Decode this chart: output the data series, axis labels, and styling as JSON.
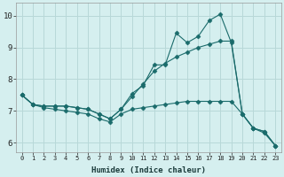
{
  "xlabel": "Humidex (Indice chaleur)",
  "background_color": "#d5efef",
  "grid_color": "#b8d8d8",
  "line_color": "#1a6b6b",
  "xlim": [
    -0.5,
    23.5
  ],
  "ylim": [
    5.7,
    10.4
  ],
  "yticks": [
    6,
    7,
    8,
    9,
    10
  ],
  "xticks": [
    0,
    1,
    2,
    3,
    4,
    5,
    6,
    7,
    8,
    9,
    10,
    11,
    12,
    13,
    14,
    15,
    16,
    17,
    18,
    19,
    20,
    21,
    22,
    23
  ],
  "series1_x": [
    0,
    1,
    2,
    3,
    4,
    5,
    6,
    7,
    8,
    9,
    10,
    11,
    12,
    13,
    14,
    15,
    16,
    17,
    18,
    19,
    20,
    21,
    22,
    23
  ],
  "series1_y": [
    7.5,
    7.2,
    7.15,
    7.15,
    7.15,
    7.1,
    7.05,
    6.9,
    6.75,
    7.05,
    7.55,
    7.8,
    8.45,
    8.45,
    9.45,
    9.15,
    9.35,
    9.85,
    10.05,
    9.15,
    6.9,
    6.45,
    6.35,
    5.9
  ],
  "series2_x": [
    0,
    1,
    2,
    3,
    4,
    5,
    6,
    7,
    8,
    9,
    10,
    11,
    12,
    13,
    14,
    15,
    16,
    17,
    18,
    19,
    20,
    21,
    22,
    23
  ],
  "series2_y": [
    7.5,
    7.2,
    7.15,
    7.15,
    7.15,
    7.1,
    7.05,
    6.9,
    6.75,
    7.05,
    7.45,
    7.85,
    8.25,
    8.5,
    8.7,
    8.85,
    9.0,
    9.1,
    9.2,
    9.2,
    6.9,
    6.45,
    6.35,
    5.9
  ],
  "series3_x": [
    0,
    1,
    2,
    3,
    4,
    5,
    6,
    7,
    8,
    9,
    10,
    11,
    12,
    13,
    14,
    15,
    16,
    17,
    18,
    19,
    20,
    21,
    22,
    23
  ],
  "series3_y": [
    7.5,
    7.2,
    7.1,
    7.05,
    7.0,
    6.95,
    6.9,
    6.75,
    6.65,
    6.9,
    7.05,
    7.1,
    7.15,
    7.2,
    7.25,
    7.3,
    7.3,
    7.3,
    7.3,
    7.3,
    6.9,
    6.45,
    6.3,
    5.9
  ]
}
